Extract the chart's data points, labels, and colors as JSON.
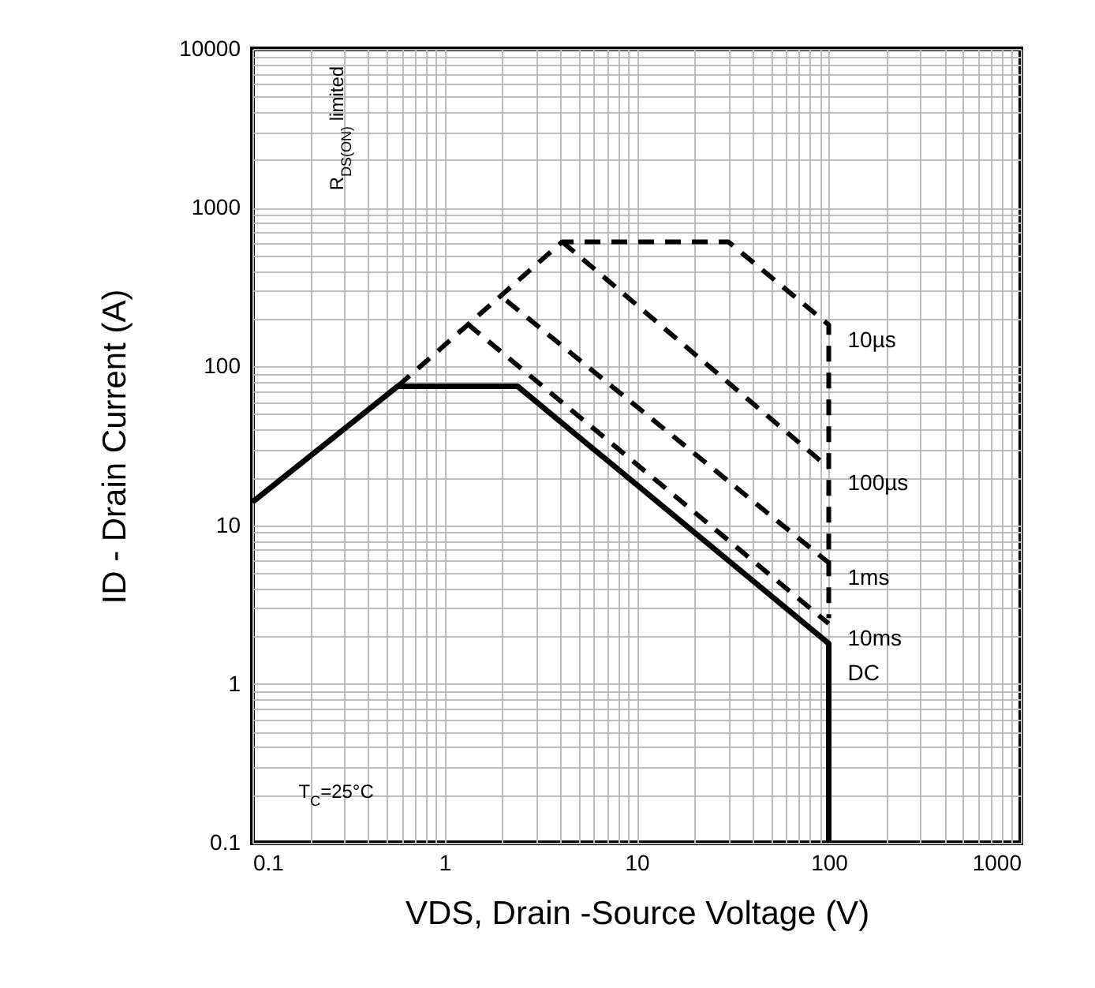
{
  "chart_data": {
    "type": "line",
    "xlabel": "VDS, Drain -Source Voltage (V)",
    "ylabel": "ID - Drain Current (A)",
    "log": "xy",
    "grid": true,
    "xlim": [
      0.1,
      1000
    ],
    "xticks": [
      0.1,
      1,
      10,
      100,
      1000
    ],
    "ylim": [
      0.1,
      10000
    ],
    "yticks": [
      0.1,
      1,
      10,
      100,
      1000,
      10000
    ],
    "series": [
      {
        "name": "10µs",
        "color": "#000000",
        "line_style": "dashed",
        "x": [
          0.57,
          4.1,
          30,
          100,
          100
        ],
        "values": [
          75,
          610,
          610,
          183,
          2.6
        ]
      },
      {
        "name": "100µs",
        "color": "#000000",
        "line_style": "dashed",
        "x": [
          4.1,
          100
        ],
        "values": [
          610,
          23
        ]
      },
      {
        "name": "1ms",
        "color": "#000000",
        "line_style": "dashed",
        "x": [
          2.1,
          100
        ],
        "values": [
          260,
          5.8
        ]
      },
      {
        "name": "10ms",
        "color": "#000000",
        "line_style": "dashed",
        "x": [
          1.32,
          100
        ],
        "values": [
          185,
          2.4
        ]
      },
      {
        "name": "DC",
        "color": "#000000",
        "line_style": "solid",
        "x": [
          0.1,
          0.57,
          2.4,
          100,
          100
        ],
        "values": [
          14,
          75,
          75,
          1.8,
          0.1
        ]
      }
    ],
    "annotations": [
      "R$_{DS(ON)}$ limited",
      "T$_{C}$=25°C"
    ]
  }
}
